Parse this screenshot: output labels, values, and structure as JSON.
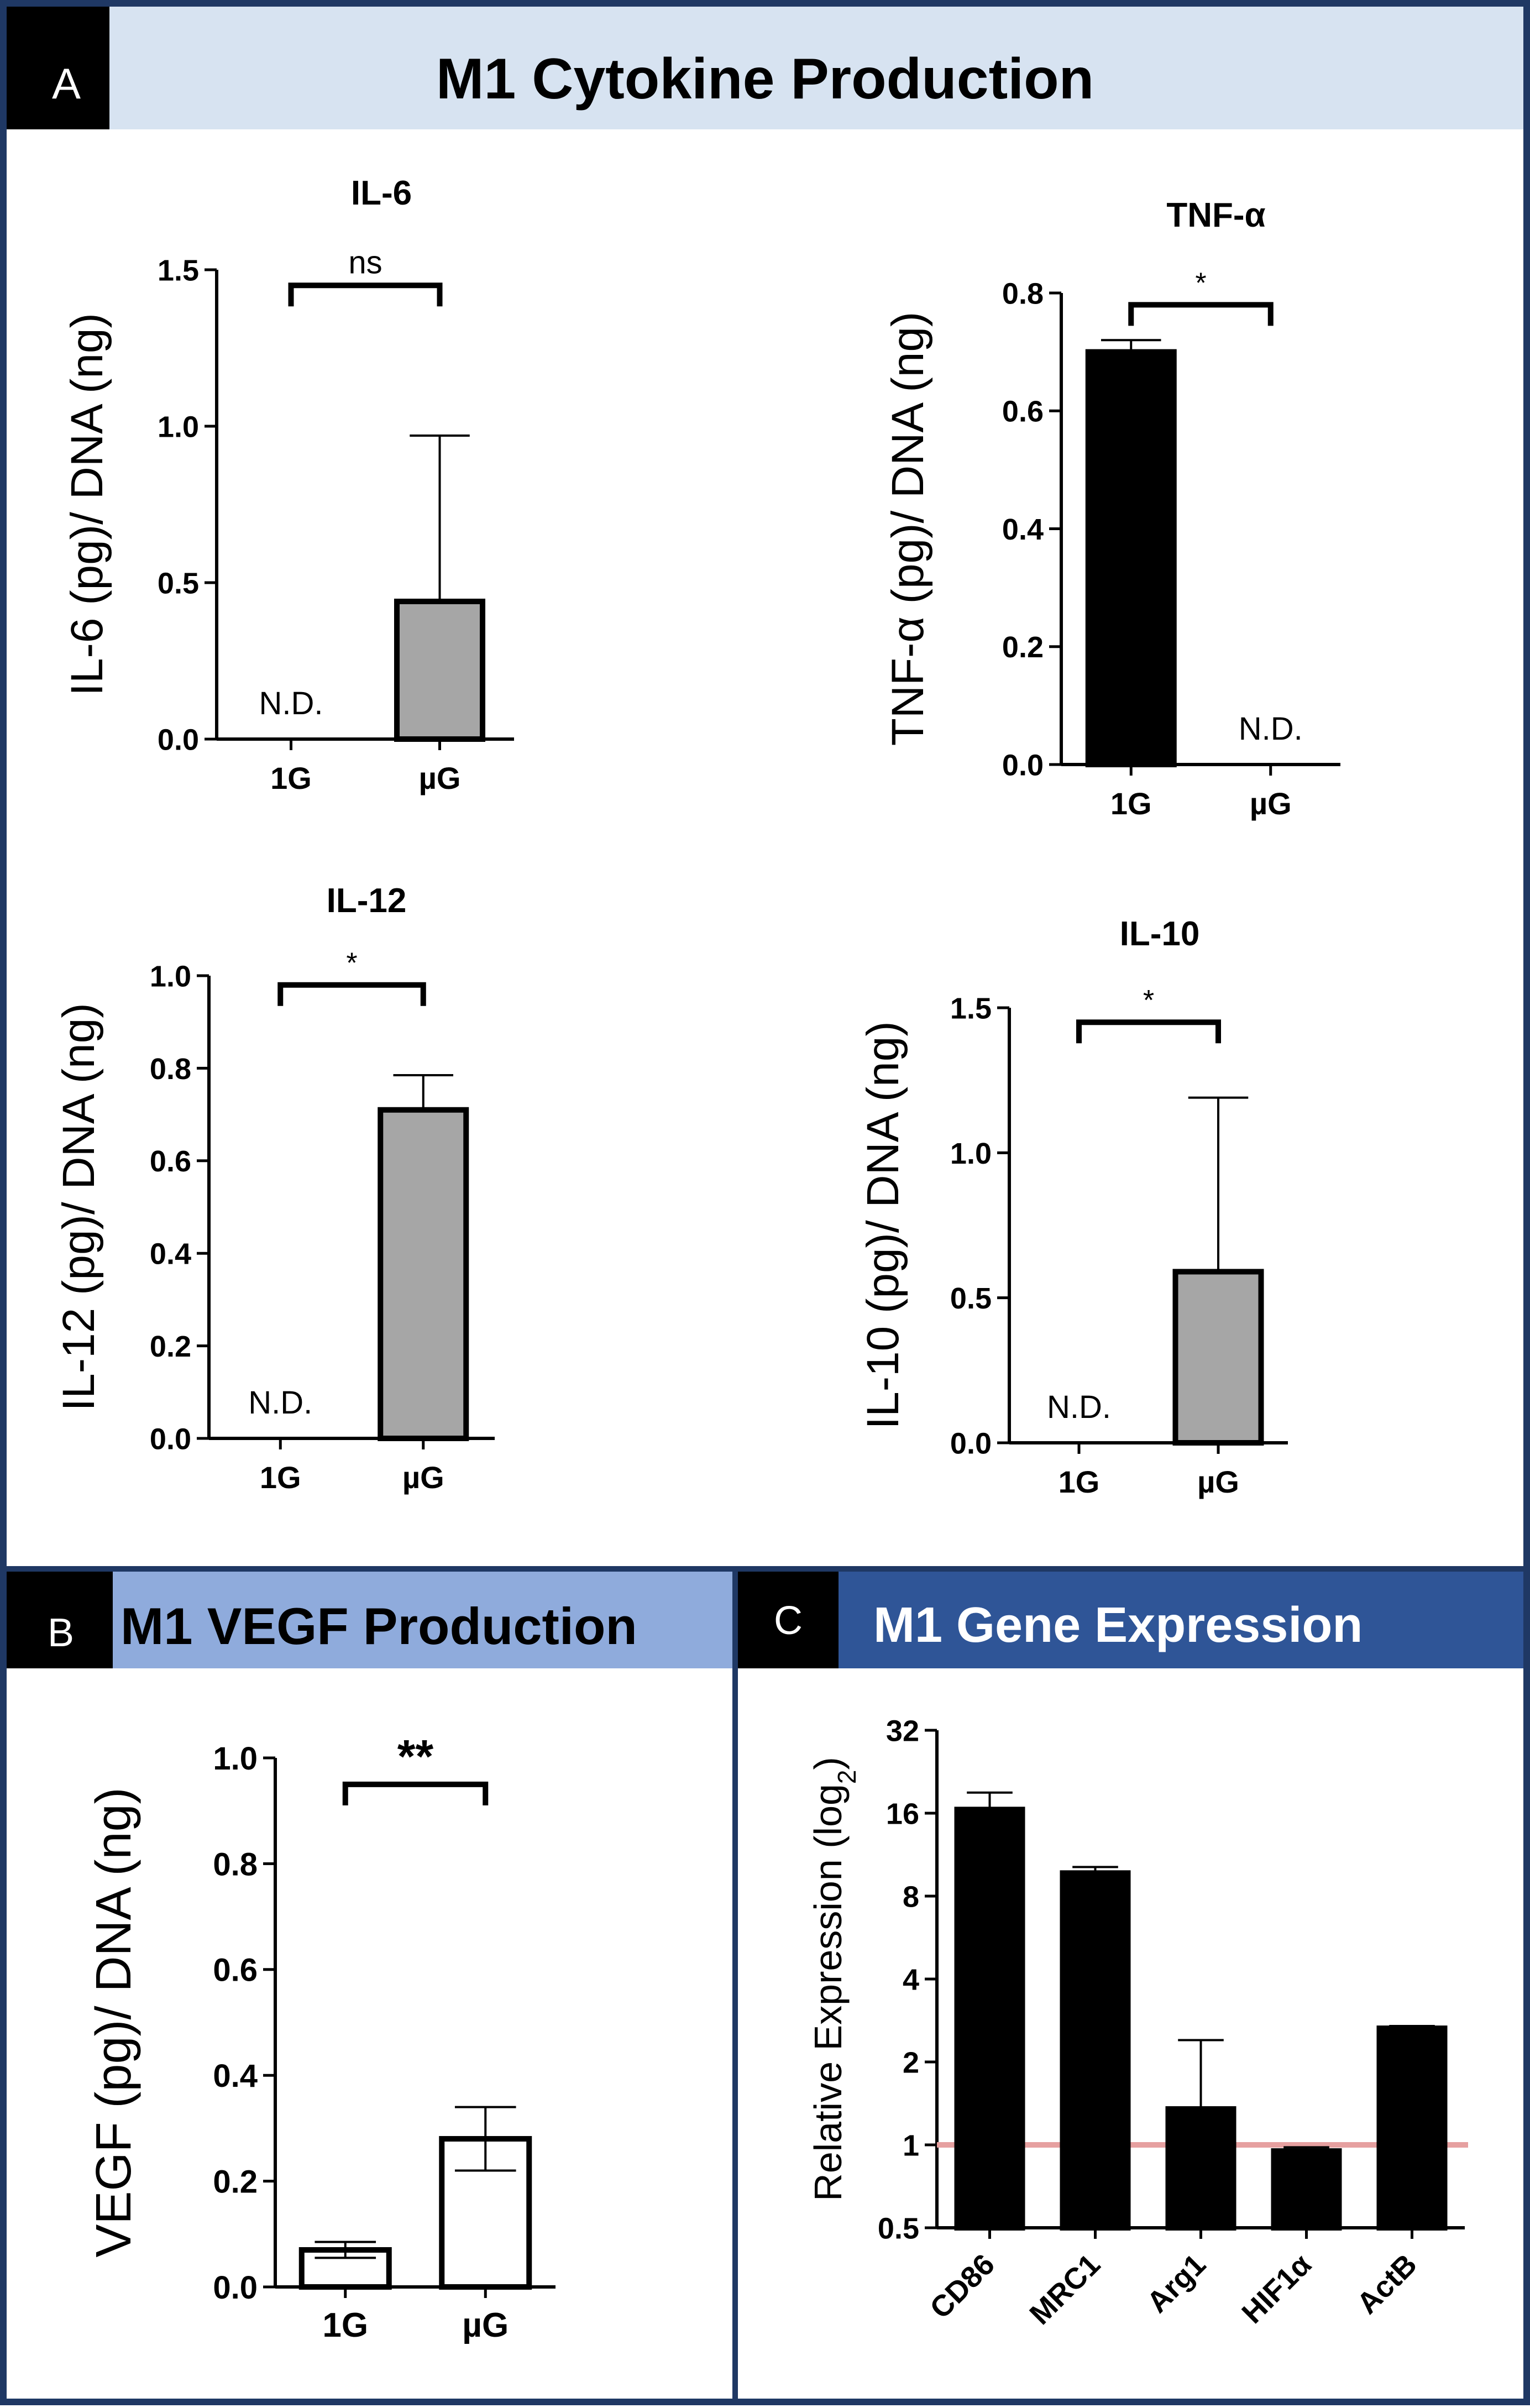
{
  "panels": {
    "A": {
      "letter": "A",
      "title": "M1 Cytokine Production",
      "header_color": "#d7e3f1"
    },
    "B": {
      "letter": "B",
      "title": "M1 VEGF Production",
      "header_color": "#8fabdc"
    },
    "C": {
      "letter": "C",
      "title": "M1 Gene Expression",
      "header_color": "#2f5597"
    }
  },
  "colors": {
    "frame": "#1f3864",
    "bar_black": "#000000",
    "bar_gray": "#a6a6a6",
    "bar_white": "#ffffff",
    "reference_line": "#e6a0a0"
  },
  "chart_data": [
    {
      "id": "il6",
      "panel": "A",
      "type": "bar",
      "title": "IL-6",
      "ylabel": "IL-6 (pg)/ DNA (ng)",
      "xlabel": "",
      "categories": [
        "1G",
        "µG"
      ],
      "values": [
        0,
        0.44
      ],
      "errors": [
        0,
        0.53
      ],
      "fills": [
        "#000000",
        "#a6a6a6"
      ],
      "ylim": [
        0,
        1.5
      ],
      "yticks": [
        0,
        0.5,
        1.0,
        1.5
      ],
      "ytick_labels": [
        "0.0",
        "0.5",
        "1.0",
        "1.5"
      ],
      "annotations": [
        {
          "category_index": 0,
          "text": "N.D."
        }
      ],
      "significance": {
        "text": "ns",
        "from": 0,
        "to": 1,
        "level": 1.45
      }
    },
    {
      "id": "tnf",
      "panel": "A",
      "type": "bar",
      "title": "TNF-α",
      "ylabel": "TNF-α (pg)/ DNA (ng)",
      "xlabel": "",
      "categories": [
        "1G",
        "µG"
      ],
      "values": [
        0.7,
        0
      ],
      "errors": [
        0.02,
        0
      ],
      "fills": [
        "#000000",
        "#a6a6a6"
      ],
      "ylim": [
        0,
        0.8
      ],
      "yticks": [
        0,
        0.2,
        0.4,
        0.6,
        0.8
      ],
      "ytick_labels": [
        "0.0",
        "0.2",
        "0.4",
        "0.6",
        "0.8"
      ],
      "annotations": [
        {
          "category_index": 1,
          "text": "N.D."
        }
      ],
      "significance": {
        "text": "*",
        "from": 0,
        "to": 1,
        "level": 0.78
      }
    },
    {
      "id": "il12",
      "panel": "A",
      "type": "bar",
      "title": "IL-12",
      "ylabel": "IL-12 (pg)/ DNA (ng)",
      "xlabel": "",
      "categories": [
        "1G",
        "µG"
      ],
      "values": [
        0,
        0.71
      ],
      "errors": [
        0,
        0.075
      ],
      "fills": [
        "#000000",
        "#a6a6a6"
      ],
      "ylim": [
        0,
        1.0
      ],
      "yticks": [
        0,
        0.2,
        0.4,
        0.6,
        0.8,
        1.0
      ],
      "ytick_labels": [
        "0.0",
        "0.2",
        "0.4",
        "0.6",
        "0.8",
        "1.0"
      ],
      "annotations": [
        {
          "category_index": 0,
          "text": "N.D."
        }
      ],
      "significance": {
        "text": "*",
        "from": 0,
        "to": 1,
        "level": 0.98
      }
    },
    {
      "id": "il10",
      "panel": "A",
      "type": "bar",
      "title": "IL-10",
      "ylabel": "IL-10 (pg)/ DNA (ng)",
      "xlabel": "",
      "categories": [
        "1G",
        "µG"
      ],
      "values": [
        0,
        0.59
      ],
      "errors": [
        0,
        0.6
      ],
      "fills": [
        "#000000",
        "#a6a6a6"
      ],
      "ylim": [
        0,
        1.5
      ],
      "yticks": [
        0,
        0.5,
        1.0,
        1.5
      ],
      "ytick_labels": [
        "0.0",
        "0.5",
        "1.0",
        "1.5"
      ],
      "annotations": [
        {
          "category_index": 0,
          "text": "N.D."
        }
      ],
      "significance": {
        "text": "*",
        "from": 0,
        "to": 1,
        "level": 1.45
      }
    },
    {
      "id": "vegf",
      "panel": "B",
      "type": "bar",
      "title": "",
      "ylabel": "VEGF (pg)/ DNA (ng)",
      "xlabel": "",
      "categories": [
        "1G",
        "µG"
      ],
      "values": [
        0.07,
        0.28
      ],
      "errors": [
        0.015,
        0.06
      ],
      "fills": [
        "#ffffff",
        "#ffffff"
      ],
      "ylim": [
        0,
        1.0
      ],
      "yticks": [
        0,
        0.2,
        0.4,
        0.6,
        0.8,
        1.0
      ],
      "ytick_labels": [
        "0.0",
        "0.2",
        "0.4",
        "0.6",
        "0.8",
        "1.0"
      ],
      "annotations": [],
      "significance": {
        "text": "**",
        "from": 0,
        "to": 1,
        "level": 0.95
      }
    },
    {
      "id": "gene",
      "panel": "C",
      "type": "bar",
      "title": "",
      "ylabel": "Relative Expression (log",
      "ylabel_sub": "2",
      "ylabel_close": ")",
      "xlabel": "",
      "yscale": "log2",
      "categories": [
        "CD86",
        "MRC1",
        "Arg1",
        "HIF1α",
        "ActB"
      ],
      "values": [
        16.5,
        9.7,
        1.35,
        0.95,
        2.65
      ],
      "error_tops": [
        19,
        10.2,
        2.4,
        0.98,
        2.7
      ],
      "fills": [
        "#000000",
        "#000000",
        "#000000",
        "#000000",
        "#000000"
      ],
      "ylim": [
        0.5,
        32
      ],
      "yticks": [
        0.5,
        1,
        2,
        4,
        8,
        16,
        32
      ],
      "ytick_labels": [
        "0.5",
        "1",
        "2",
        "4",
        "8",
        "16",
        "32"
      ],
      "reference_line": 1
    }
  ]
}
